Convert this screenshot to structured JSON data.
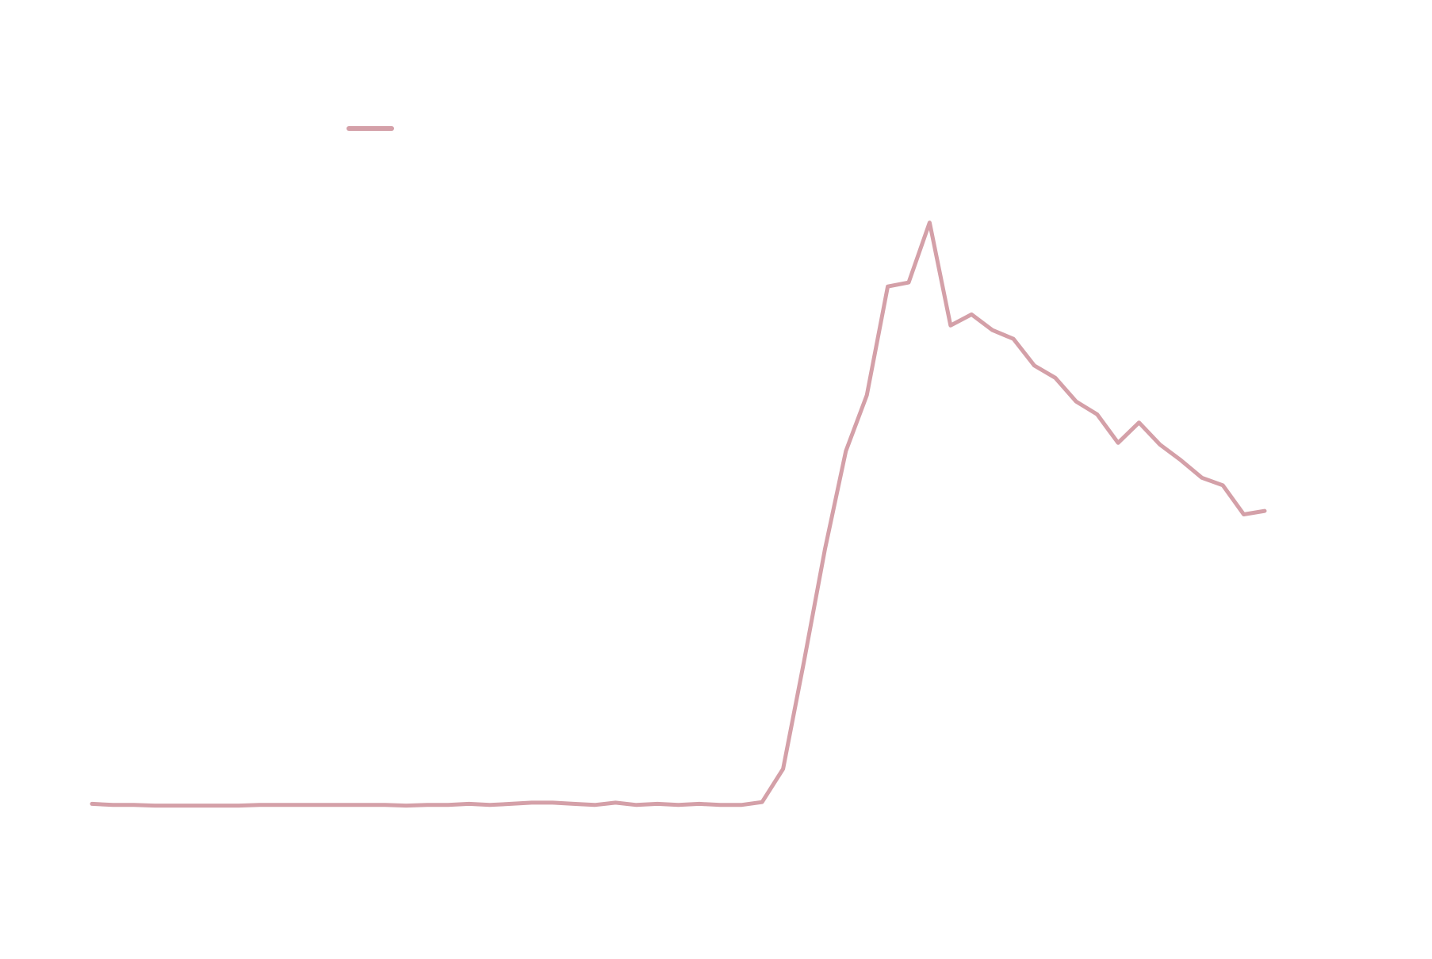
{
  "chart_data": {
    "type": "line",
    "categories": [
      null,
      null,
      null,
      null,
      null,
      null,
      null,
      null,
      null,
      null,
      null,
      null,
      null,
      null,
      null,
      null,
      null,
      null,
      null,
      null,
      null,
      null,
      null,
      null,
      null,
      null,
      null,
      null,
      null,
      null,
      null,
      null,
      null,
      null,
      null,
      null,
      null,
      null,
      null,
      null,
      null,
      null,
      null,
      null,
      null,
      null,
      null,
      null,
      null,
      null,
      null,
      null,
      null,
      null,
      null,
      null,
      null
    ],
    "series": [
      {
        "color": "#d4a0a8",
        "values": [
          0,
          -0.2,
          -0.2,
          -0.3,
          -0.3,
          -0.3,
          -0.3,
          -0.3,
          -0.2,
          -0.2,
          -0.2,
          -0.2,
          -0.2,
          -0.2,
          -0.2,
          -0.3,
          -0.2,
          -0.2,
          0,
          -0.2,
          0,
          0.2,
          0.2,
          0,
          -0.2,
          0.2,
          -0.2,
          0,
          -0.2,
          0,
          -0.2,
          -0.2,
          0.3,
          6.0,
          24.5,
          43.8,
          60.7,
          70.3,
          89.0,
          89.7,
          100,
          82.3,
          84.2,
          81.5,
          80.0,
          75.4,
          73.3,
          69.2,
          67.0,
          62.1,
          65.6,
          61.8,
          59.1,
          56.1,
          54.8,
          49.8,
          50.4
        ]
      }
    ],
    "ylim": [
      -26.7,
      138.3
    ],
    "legend": "upper left"
  }
}
